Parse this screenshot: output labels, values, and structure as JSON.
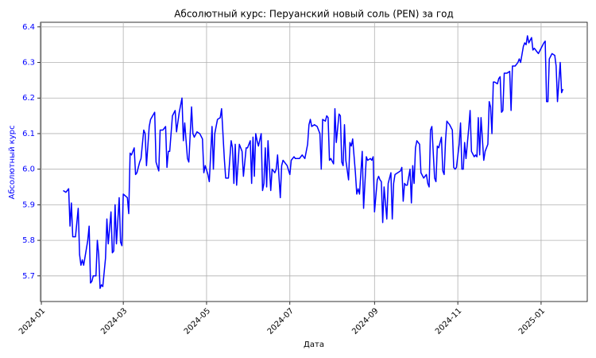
{
  "chart_data": {
    "type": "line",
    "title": "Абсолютный курс: Перуанский новый соль (PEN) за год",
    "x_label": "Дата",
    "y_label": "Абсолютный курс",
    "color": "#0000ff",
    "grid": true,
    "x": [
      16,
      18,
      20,
      21,
      22,
      23,
      25,
      27,
      28,
      29,
      30,
      31,
      34,
      35,
      36,
      37,
      38,
      40,
      41,
      42,
      43,
      44,
      45,
      47,
      48,
      49,
      51,
      52,
      53,
      54,
      55,
      57,
      58,
      59,
      60,
      63,
      64,
      65,
      66,
      68,
      69,
      70,
      72,
      73,
      75,
      76,
      77,
      79,
      80,
      83,
      84,
      86,
      87,
      89,
      91,
      92,
      93,
      94,
      96,
      98,
      99,
      101,
      103,
      104,
      105,
      107,
      108,
      110,
      111,
      112,
      114,
      116,
      118,
      119,
      120,
      122,
      123,
      125,
      126,
      127,
      129,
      131,
      132,
      134,
      135,
      137,
      139,
      140,
      141,
      142,
      143,
      145,
      147,
      148,
      150,
      151,
      153,
      154,
      155,
      156,
      157,
      158,
      159,
      161,
      162,
      163,
      164,
      165,
      166,
      168,
      169,
      171,
      172,
      173,
      175,
      176,
      177,
      178,
      180,
      182,
      183,
      185,
      186,
      189,
      191,
      193,
      195,
      196,
      197,
      198,
      200,
      202,
      204,
      205,
      206,
      208,
      209,
      210,
      211,
      212,
      214,
      215,
      216,
      218,
      219,
      220,
      221,
      222,
      223,
      225,
      226,
      227,
      228,
      230,
      231,
      232,
      233,
      235,
      236,
      238,
      239,
      241,
      242,
      243,
      244,
      246,
      247,
      248,
      249,
      250,
      251,
      253,
      254,
      256,
      257,
      258,
      259,
      261,
      263,
      264,
      265,
      266,
      267,
      268,
      270,
      271,
      272,
      273,
      274,
      275,
      277,
      278,
      280,
      282,
      283,
      284,
      285,
      286,
      288,
      289,
      290,
      291,
      293,
      294,
      295,
      296,
      297,
      299,
      301,
      302,
      303,
      304,
      306,
      307,
      308,
      309,
      310,
      311,
      313,
      314,
      315,
      317,
      318,
      319,
      320,
      321,
      322,
      324,
      325,
      327,
      328,
      329,
      330,
      331,
      332,
      334,
      335,
      336,
      337,
      338,
      339,
      341,
      343,
      344,
      345,
      347,
      349,
      350,
      351,
      353,
      354,
      355,
      356,
      357,
      359,
      360,
      361,
      363,
      364,
      366,
      368,
      369,
      370,
      371,
      372,
      374,
      376,
      377,
      378,
      380,
      381,
      382
    ],
    "values": [
      5.94,
      5.935,
      5.945,
      5.84,
      5.905,
      5.81,
      5.81,
      5.89,
      5.76,
      5.73,
      5.745,
      5.73,
      5.8,
      5.84,
      5.68,
      5.685,
      5.7,
      5.7,
      5.8,
      5.76,
      5.665,
      5.675,
      5.67,
      5.75,
      5.86,
      5.79,
      5.88,
      5.765,
      5.77,
      5.9,
      5.79,
      5.92,
      5.795,
      5.785,
      5.93,
      5.92,
      5.875,
      6.045,
      6.04,
      6.06,
      5.985,
      5.99,
      6.02,
      6.03,
      6.11,
      6.1,
      6.01,
      6.12,
      6.14,
      6.16,
      6.02,
      5.995,
      6.11,
      6.11,
      6.12,
      6.005,
      6.05,
      6.05,
      6.15,
      6.165,
      6.105,
      6.16,
      6.2,
      6.08,
      6.13,
      6.03,
      6.02,
      6.175,
      6.1,
      6.09,
      6.105,
      6.1,
      6.085,
      5.99,
      6.01,
      5.985,
      5.965,
      6.12,
      6.0,
      6.1,
      6.14,
      6.145,
      6.17,
      6.03,
      5.975,
      5.975,
      6.08,
      6.06,
      5.96,
      6.07,
      5.955,
      6.07,
      6.05,
      5.98,
      6.06,
      6.06,
      6.08,
      5.96,
      6.09,
      5.98,
      6.1,
      6.08,
      6.065,
      6.1,
      5.94,
      5.96,
      6.06,
      5.95,
      6.08,
      5.94,
      6.0,
      5.99,
      6.0,
      6.04,
      5.92,
      6.01,
      6.025,
      6.02,
      6.01,
      5.985,
      6.025,
      6.035,
      6.03,
      6.03,
      6.04,
      6.03,
      6.07,
      6.125,
      6.14,
      6.12,
      6.125,
      6.12,
      6.1,
      6.0,
      6.14,
      6.135,
      6.15,
      6.145,
      6.025,
      6.03,
      6.015,
      6.17,
      6.075,
      6.155,
      6.15,
      6.02,
      6.01,
      6.125,
      6.025,
      5.97,
      6.075,
      6.065,
      6.085,
      5.99,
      5.93,
      5.945,
      5.93,
      6.05,
      5.89,
      6.035,
      6.025,
      6.03,
      6.025,
      6.035,
      5.88,
      5.97,
      5.98,
      5.97,
      5.965,
      5.85,
      5.95,
      5.86,
      5.96,
      5.99,
      5.86,
      5.96,
      5.985,
      5.99,
      5.995,
      6.005,
      5.91,
      5.96,
      5.955,
      5.955,
      6.0,
      5.905,
      6.01,
      5.96,
      6.06,
      6.08,
      6.07,
      5.99,
      5.975,
      5.985,
      5.96,
      5.95,
      6.11,
      6.12,
      5.975,
      5.965,
      6.065,
      6.06,
      6.09,
      5.995,
      5.985,
      6.08,
      6.135,
      6.125,
      6.11,
      6.005,
      6.0,
      6.005,
      6.07,
      6.13,
      6.0,
      6.0,
      6.075,
      6.03,
      6.115,
      6.165,
      6.05,
      6.035,
      6.04,
      6.035,
      6.145,
      6.04,
      6.145,
      6.025,
      6.05,
      6.07,
      6.19,
      6.175,
      6.1,
      6.245,
      6.245,
      6.24,
      6.255,
      6.26,
      6.16,
      6.165,
      6.27,
      6.27,
      6.275,
      6.165,
      6.29,
      6.29,
      6.3,
      6.31,
      6.3,
      6.345,
      6.355,
      6.35,
      6.375,
      6.355,
      6.37,
      6.335,
      6.34,
      6.33,
      6.325,
      6.34,
      6.355,
      6.36,
      6.19,
      6.19,
      6.31,
      6.325,
      6.32,
      6.29,
      6.19,
      6.3,
      6.215,
      6.225
    ],
    "xlim": [
      -0.6,
      399.8
    ],
    "xticks": [
      {
        "value": 0,
        "label": "2024-01"
      },
      {
        "value": 60,
        "label": "2024-03"
      },
      {
        "value": 121,
        "label": "2024-05"
      },
      {
        "value": 182,
        "label": "2024-07"
      },
      {
        "value": 244,
        "label": "2024-09"
      },
      {
        "value": 305,
        "label": "2024-11"
      },
      {
        "value": 366,
        "label": "2025-01"
      }
    ],
    "ylim": [
      5.628,
      6.413
    ],
    "yticks": [
      5.7,
      5.8,
      5.9,
      {
        "value": 6.0,
        "label": "6.0"
      },
      6.1,
      6.2,
      6.3,
      6.4
    ]
  }
}
